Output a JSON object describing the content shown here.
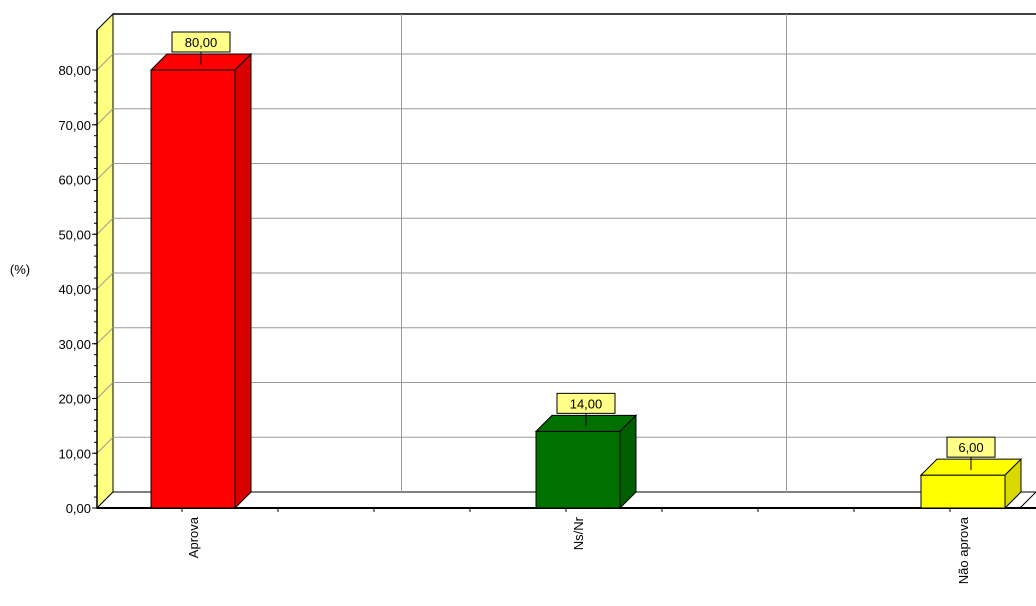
{
  "chart_data": {
    "type": "bar",
    "categories": [
      "Aprova",
      "Ns/Nr",
      "Não aprova"
    ],
    "values": [
      80,
      14,
      6
    ],
    "value_labels": [
      "80,00",
      "14,00",
      "6,00"
    ],
    "ylabel": "(%)",
    "ylim": [
      0,
      80
    ],
    "yticks": [
      "0,00",
      "10,00",
      "20,00",
      "30,00",
      "40,00",
      "50,00",
      "60,00",
      "70,00",
      "80,00"
    ],
    "colors": [
      "#ff0000",
      "#007000",
      "#ffff00"
    ],
    "label_bg": "#ffff88",
    "wall_color": "#ffff80",
    "grid": true,
    "style": "3d"
  }
}
